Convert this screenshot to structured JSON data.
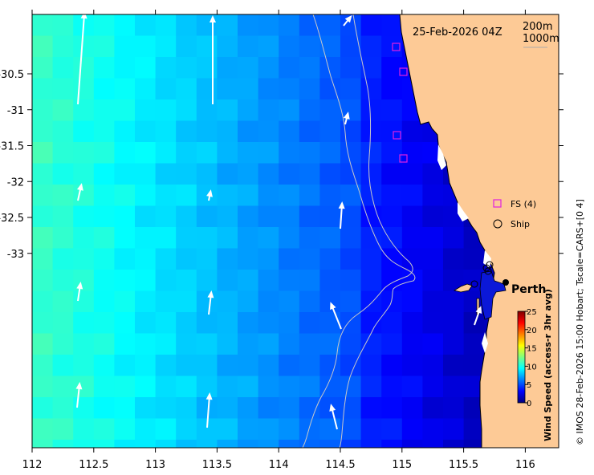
{
  "map": {
    "date_label": "25-Feb-2026 04Z",
    "contour_legend": [
      "200m",
      "1000m"
    ],
    "city_label": "Perth",
    "x_ticks": [
      "112",
      "112.5",
      "113",
      "113.5",
      "114",
      "114.5",
      "115",
      "115.5",
      "116"
    ],
    "y_ticks": [
      "-30.5",
      "-31",
      "-31.5",
      "-32",
      "-32.5",
      "-33"
    ],
    "legend": {
      "fs_label": "FS (4)",
      "ship_label": "Ship"
    },
    "colorbar": {
      "title": "Wind Speed (access-r 3hr avg)",
      "ticks": [
        "0",
        "5",
        "10",
        "15",
        "20",
        "25"
      ],
      "range": [
        0,
        25
      ]
    },
    "credit": "© IMOS 28-Feb-2026 15:00 Hobart; Tscale=CARS+[0 4]"
  },
  "colors": {
    "land": "#fdca96",
    "fs_marker": "#e020e0",
    "contour": "#cccccc"
  }
}
